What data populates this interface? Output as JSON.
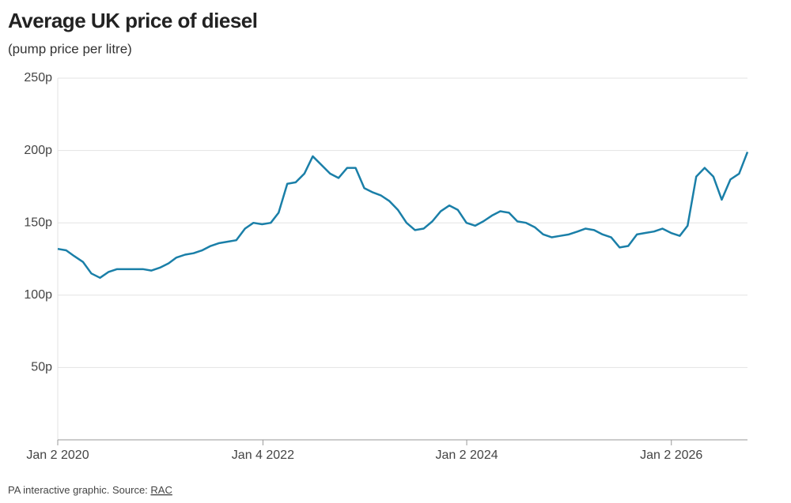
{
  "chart_data": {
    "type": "line",
    "title": "Average UK price of diesel",
    "subtitle": "(pump price per litre)",
    "source_text": "PA interactive graphic. Source: ",
    "source_link": "RAC",
    "x": [
      "2020-01-02",
      "2020-02-01",
      "2020-03-01",
      "2020-04-01",
      "2020-05-01",
      "2020-06-01",
      "2020-07-01",
      "2020-08-01",
      "2020-09-01",
      "2020-10-01",
      "2020-11-01",
      "2020-12-01",
      "2021-01-01",
      "2021-02-01",
      "2021-03-01",
      "2021-04-01",
      "2021-05-01",
      "2021-06-01",
      "2021-07-01",
      "2021-08-01",
      "2021-09-01",
      "2021-10-01",
      "2021-11-01",
      "2021-12-01",
      "2022-01-01",
      "2022-02-01",
      "2022-03-01",
      "2022-04-01",
      "2022-05-01",
      "2022-06-01",
      "2022-07-01",
      "2022-08-01",
      "2022-09-01",
      "2022-10-01",
      "2022-11-01",
      "2022-12-01",
      "2023-01-01",
      "2023-02-01",
      "2023-03-01",
      "2023-04-01",
      "2023-05-01",
      "2023-06-01",
      "2023-07-01",
      "2023-08-01",
      "2023-09-01",
      "2023-10-01",
      "2023-11-01",
      "2023-12-01",
      "2024-01-01",
      "2024-02-01",
      "2024-03-01",
      "2024-04-01",
      "2024-05-01",
      "2024-06-01",
      "2024-07-01",
      "2024-08-01",
      "2024-09-01",
      "2024-10-01",
      "2024-11-01",
      "2024-12-01",
      "2025-01-01",
      "2025-02-01",
      "2025-03-01",
      "2025-04-01",
      "2025-05-01",
      "2025-06-01",
      "2025-07-01",
      "2025-08-01",
      "2025-09-01",
      "2025-10-01",
      "2025-11-01",
      "2025-12-01",
      "2026-01-01",
      "2026-02-01",
      "2026-03-01",
      "2026-04-01",
      "2026-05-01",
      "2026-06-01",
      "2026-07-01",
      "2026-08-01",
      "2026-09-01",
      "2026-10-01"
    ],
    "series": [
      {
        "name": "Diesel",
        "color": "#1a7fa8",
        "values": [
          132,
          131,
          127,
          123,
          115,
          112,
          116,
          118,
          118,
          118,
          118,
          117,
          119,
          122,
          126,
          128,
          129,
          131,
          134,
          136,
          137,
          138,
          146,
          150,
          149,
          150,
          157,
          177,
          178,
          184,
          196,
          190,
          184,
          181,
          188,
          188,
          174,
          171,
          169,
          165,
          159,
          150,
          145,
          146,
          151,
          158,
          162,
          159,
          150,
          148,
          151,
          155,
          158,
          157,
          151,
          150,
          147,
          142,
          140,
          141,
          142,
          144,
          146,
          145,
          142,
          140,
          133,
          134,
          142,
          143,
          144,
          146,
          143,
          141,
          148,
          182,
          188,
          182,
          166,
          180,
          184,
          199
        ]
      }
    ],
    "xlim": [
      "2020-01-02",
      "2026-10-01"
    ],
    "xticks": [
      {
        "value": "2020-01-02",
        "label": "Jan 2 2020"
      },
      {
        "value": "2022-01-04",
        "label": "Jan 4 2022"
      },
      {
        "value": "2024-01-02",
        "label": "Jan 2 2024"
      },
      {
        "value": "2026-01-02",
        "label": "Jan 2 2026"
      }
    ],
    "ylim": [
      0,
      250
    ],
    "yticks": [
      {
        "value": 50,
        "label": "50p"
      },
      {
        "value": 100,
        "label": "100p"
      },
      {
        "value": 150,
        "label": "150p"
      },
      {
        "value": 200,
        "label": "200p"
      },
      {
        "value": 250,
        "label": "250p"
      }
    ],
    "grid": true
  }
}
